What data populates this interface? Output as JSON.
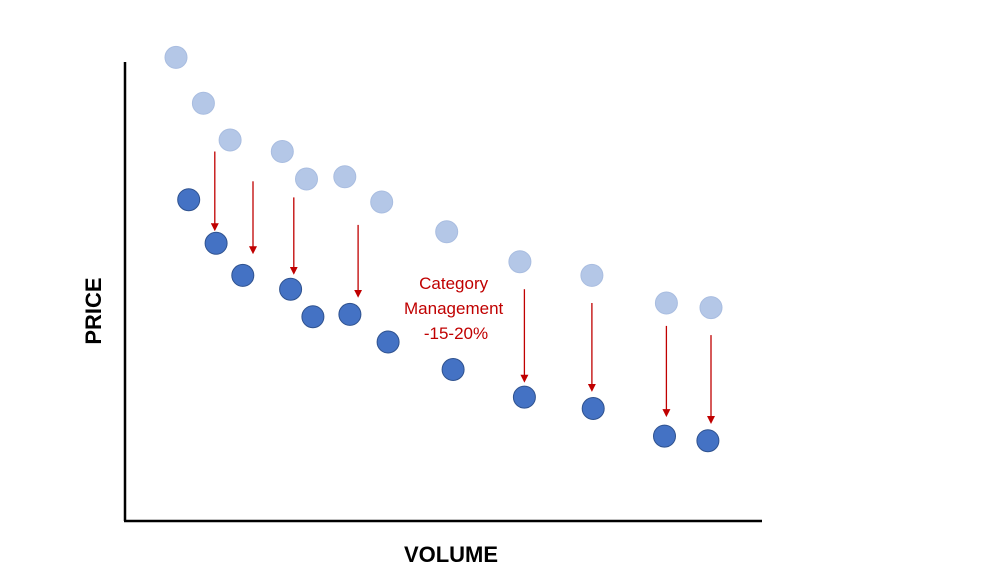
{
  "chart_data": {
    "type": "scatter",
    "title": "",
    "xlabel": "VOLUME",
    "ylabel": "PRICE",
    "grid": false,
    "legend": "none",
    "xlim": [
      0,
      100
    ],
    "ylim": [
      0,
      100
    ],
    "series": [
      {
        "role": "before",
        "color": "#b4c7e7",
        "points": [
          {
            "x": 8,
            "y": 101
          },
          {
            "x": 12.3,
            "y": 91
          },
          {
            "x": 16.5,
            "y": 83
          },
          {
            "x": 24.7,
            "y": 80.5
          },
          {
            "x": 28.5,
            "y": 74.5
          },
          {
            "x": 34.5,
            "y": 75
          },
          {
            "x": 40.3,
            "y": 69.5
          },
          {
            "x": 50.5,
            "y": 63
          },
          {
            "x": 62,
            "y": 56.5
          },
          {
            "x": 73.3,
            "y": 53.5
          },
          {
            "x": 85,
            "y": 47.5
          },
          {
            "x": 92,
            "y": 46.5
          }
        ]
      },
      {
        "role": "after",
        "color": "#4472c4",
        "points": [
          {
            "x": 10,
            "y": 70
          },
          {
            "x": 14.3,
            "y": 60.5
          },
          {
            "x": 18.5,
            "y": 53.5
          },
          {
            "x": 26,
            "y": 50.5
          },
          {
            "x": 29.5,
            "y": 44.5
          },
          {
            "x": 35.3,
            "y": 45
          },
          {
            "x": 41.3,
            "y": 39
          },
          {
            "x": 51.5,
            "y": 33
          },
          {
            "x": 62.7,
            "y": 27
          },
          {
            "x": 73.5,
            "y": 24.5
          },
          {
            "x": 84.7,
            "y": 18.5
          },
          {
            "x": 91.5,
            "y": 17.5
          }
        ]
      }
    ],
    "arrows": [
      {
        "x": 14.1,
        "from": 80.5,
        "to": 64
      },
      {
        "x": 20.1,
        "from": 74,
        "to": 59
      },
      {
        "x": 26.5,
        "from": 70.5,
        "to": 54.5
      },
      {
        "x": 36.6,
        "from": 64.5,
        "to": 49.5
      },
      {
        "x": 62.7,
        "from": 50.5,
        "to": 31
      },
      {
        "x": 73.3,
        "from": 47.5,
        "to": 29
      },
      {
        "x": 85,
        "from": 42.5,
        "to": 23.5
      },
      {
        "x": 92,
        "from": 40.5,
        "to": 22
      }
    ],
    "annotation": {
      "lines": [
        "Category",
        "Management",
        "-15-20%"
      ],
      "color": "#c00000"
    }
  }
}
